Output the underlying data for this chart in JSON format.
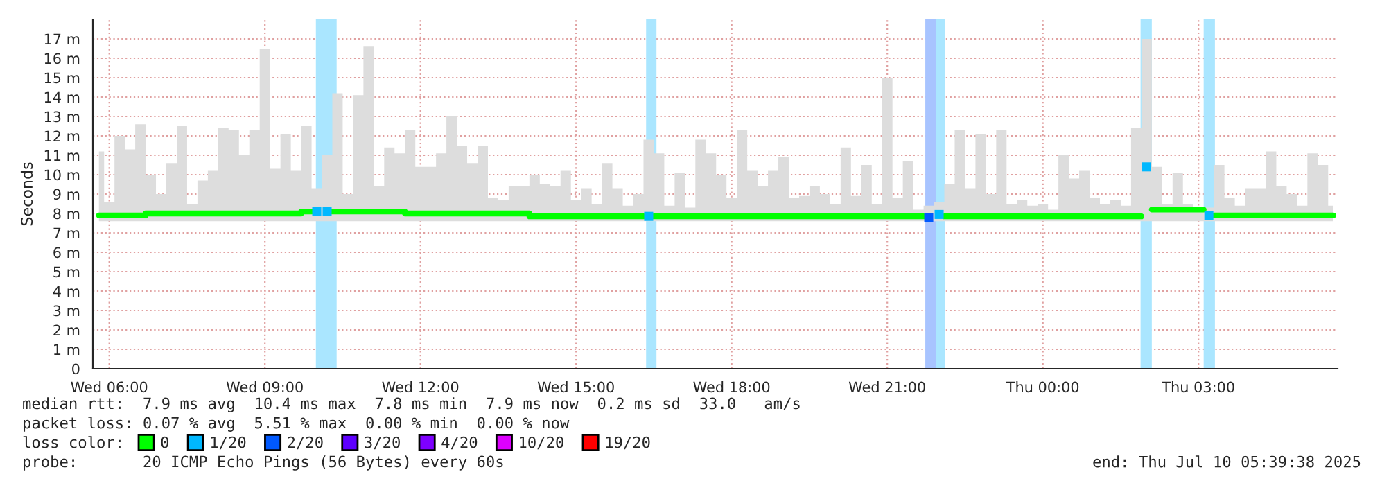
{
  "chart_data": {
    "type": "step",
    "ylabel": "Seconds",
    "xlim": [
      "2025-07-09T05:41",
      "2025-07-10T05:41"
    ],
    "ylim": [
      0,
      18
    ],
    "xticks": [
      {
        "value": "2025-07-09T06:00",
        "label": "Wed 06:00"
      },
      {
        "value": "2025-07-09T09:00",
        "label": "Wed 09:00"
      },
      {
        "value": "2025-07-09T12:00",
        "label": "Wed 12:00"
      },
      {
        "value": "2025-07-09T15:00",
        "label": "Wed 15:00"
      },
      {
        "value": "2025-07-09T18:00",
        "label": "Wed 18:00"
      },
      {
        "value": "2025-07-09T21:00",
        "label": "Wed 21:00"
      },
      {
        "value": "2025-07-10T00:00",
        "label": "Thu 00:00"
      },
      {
        "value": "2025-07-10T03:00",
        "label": "Thu 03:00"
      }
    ],
    "yticks": [
      0,
      {
        "value": 1,
        "label": "1 m"
      },
      {
        "value": 2,
        "label": "2 m"
      },
      {
        "value": 3,
        "label": "3 m"
      },
      {
        "value": 4,
        "label": "4 m"
      },
      {
        "value": 5,
        "label": "5 m"
      },
      {
        "value": 6,
        "label": "6 m"
      },
      {
        "value": 7,
        "label": "7 m"
      },
      {
        "value": 8,
        "label": "8 m"
      },
      {
        "value": 9,
        "label": "9 m"
      },
      {
        "value": 10,
        "label": "10 m"
      },
      {
        "value": 11,
        "label": "11 m"
      },
      {
        "value": 12,
        "label": "12 m"
      },
      {
        "value": 13,
        "label": "13 m"
      },
      {
        "value": 14,
        "label": "14 m"
      },
      {
        "value": 15,
        "label": "15 m"
      },
      {
        "value": 16,
        "label": "16 m"
      },
      {
        "value": 17,
        "label": "17 m"
      }
    ],
    "grid": true,
    "legend": "bottom",
    "legend_title": "loss color:",
    "x": [
      "2025-07-09T05:48",
      "2025-07-09T06:00",
      "2025-07-09T06:12",
      "2025-07-09T06:24",
      "2025-07-09T06:36",
      "2025-07-09T06:48",
      "2025-07-09T07:00",
      "2025-07-09T07:12",
      "2025-07-09T07:24",
      "2025-07-09T07:36",
      "2025-07-09T07:48",
      "2025-07-09T08:00",
      "2025-07-09T08:12",
      "2025-07-09T08:24",
      "2025-07-09T08:36",
      "2025-07-09T08:48",
      "2025-07-09T09:00",
      "2025-07-09T09:12",
      "2025-07-09T09:24",
      "2025-07-09T09:36",
      "2025-07-09T09:48",
      "2025-07-09T10:00",
      "2025-07-09T10:12",
      "2025-07-09T10:24",
      "2025-07-09T10:36",
      "2025-07-09T10:48",
      "2025-07-09T11:00",
      "2025-07-09T11:12",
      "2025-07-09T11:24",
      "2025-07-09T11:36",
      "2025-07-09T11:48",
      "2025-07-09T12:00",
      "2025-07-09T12:12",
      "2025-07-09T12:24",
      "2025-07-09T12:36",
      "2025-07-09T12:48",
      "2025-07-09T13:00",
      "2025-07-09T13:12",
      "2025-07-09T13:24",
      "2025-07-09T13:36",
      "2025-07-09T13:48",
      "2025-07-09T14:00",
      "2025-07-09T14:12",
      "2025-07-09T14:24",
      "2025-07-09T14:36",
      "2025-07-09T14:48",
      "2025-07-09T15:00",
      "2025-07-09T15:12",
      "2025-07-09T15:24",
      "2025-07-09T15:36",
      "2025-07-09T15:48",
      "2025-07-09T16:00",
      "2025-07-09T16:12",
      "2025-07-09T16:24",
      "2025-07-09T16:36",
      "2025-07-09T16:48",
      "2025-07-09T17:00",
      "2025-07-09T17:12",
      "2025-07-09T17:24",
      "2025-07-09T17:36",
      "2025-07-09T17:48",
      "2025-07-09T18:00",
      "2025-07-09T18:12",
      "2025-07-09T18:24",
      "2025-07-09T18:36",
      "2025-07-09T18:48",
      "2025-07-09T19:00",
      "2025-07-09T19:12",
      "2025-07-09T19:24",
      "2025-07-09T19:36",
      "2025-07-09T19:48",
      "2025-07-09T20:00",
      "2025-07-09T20:12",
      "2025-07-09T20:24",
      "2025-07-09T20:36",
      "2025-07-09T20:48",
      "2025-07-09T21:00",
      "2025-07-09T21:12",
      "2025-07-09T21:24",
      "2025-07-09T21:36",
      "2025-07-09T21:48",
      "2025-07-09T22:00",
      "2025-07-09T22:12",
      "2025-07-09T22:24",
      "2025-07-09T22:36",
      "2025-07-09T22:48",
      "2025-07-09T23:00",
      "2025-07-09T23:12",
      "2025-07-09T23:24",
      "2025-07-09T23:36",
      "2025-07-09T23:48",
      "2025-07-10T00:00",
      "2025-07-10T00:12",
      "2025-07-10T00:24",
      "2025-07-10T00:36",
      "2025-07-10T00:48",
      "2025-07-10T01:00",
      "2025-07-10T01:12",
      "2025-07-10T01:24",
      "2025-07-10T01:36",
      "2025-07-10T01:48",
      "2025-07-10T02:00",
      "2025-07-10T02:12",
      "2025-07-10T02:24",
      "2025-07-10T02:36",
      "2025-07-10T02:48",
      "2025-07-10T03:00",
      "2025-07-10T03:12",
      "2025-07-10T03:24",
      "2025-07-10T03:36",
      "2025-07-10T03:48",
      "2025-07-10T04:00",
      "2025-07-10T04:12",
      "2025-07-10T04:24",
      "2025-07-10T04:36",
      "2025-07-10T04:48",
      "2025-07-10T05:00",
      "2025-07-10T05:12",
      "2025-07-10T05:24",
      "2025-07-10T05:36"
    ],
    "series": [
      {
        "name": "0",
        "color": "#00ff00",
        "values": [
          7.9,
          7.9,
          7.9,
          7.9,
          7.9,
          8.0,
          8.0,
          8.0,
          8.0,
          8.0,
          8.0,
          8.0,
          8.0,
          8.0,
          8.0,
          8.0,
          8.0,
          8.0,
          8.0,
          8.0,
          8.1,
          null,
          null,
          8.1,
          8.1,
          8.1,
          8.1,
          8.1,
          8.1,
          8.1,
          8.0,
          8.0,
          8.0,
          8.0,
          8.0,
          8.0,
          8.0,
          8.0,
          8.0,
          8.0,
          8.0,
          8.0,
          7.85,
          7.85,
          7.85,
          7.85,
          7.85,
          7.85,
          7.85,
          7.85,
          7.85,
          7.85,
          7.85,
          null,
          7.85,
          7.85,
          7.85,
          7.85,
          7.85,
          7.85,
          7.85,
          7.85,
          7.85,
          7.85,
          7.85,
          7.85,
          7.85,
          7.85,
          7.85,
          7.85,
          7.85,
          7.85,
          7.85,
          7.85,
          7.85,
          7.85,
          7.85,
          7.85,
          7.85,
          7.85,
          null,
          null,
          7.85,
          7.85,
          7.85,
          7.85,
          7.85,
          7.85,
          7.85,
          7.85,
          7.85,
          7.85,
          7.85,
          7.85,
          7.85,
          7.85,
          7.85,
          7.85,
          7.85,
          7.85,
          7.85,
          null,
          8.2,
          8.2,
          8.2,
          8.2,
          8.2,
          null,
          7.9,
          7.9,
          7.9,
          7.9,
          7.9,
          7.9,
          7.9,
          7.9,
          7.9,
          7.9,
          7.9,
          7.9
        ],
        "lower": [
          7.6,
          7.6,
          7.6,
          7.6,
          7.6,
          7.6,
          7.6,
          7.6,
          7.6,
          7.6,
          7.6,
          7.6,
          7.6,
          7.6,
          7.6,
          7.6,
          7.6,
          7.6,
          7.6,
          7.6,
          7.6,
          7.6,
          7.6,
          7.6,
          7.6,
          7.6,
          7.6,
          7.6,
          7.6,
          7.6,
          7.6,
          7.6,
          7.6,
          7.6,
          7.6,
          7.6,
          7.6,
          7.6,
          7.6,
          7.6,
          7.6,
          7.6,
          7.6,
          7.6,
          7.6,
          7.6,
          7.6,
          7.6,
          7.6,
          7.6,
          7.6,
          7.6,
          7.6,
          7.6,
          7.6,
          7.6,
          7.6,
          7.6,
          7.6,
          7.6,
          7.6,
          7.6,
          7.6,
          7.6,
          7.6,
          7.6,
          7.6,
          7.6,
          7.6,
          7.6,
          7.6,
          7.6,
          7.6,
          7.6,
          7.6,
          7.6,
          7.6,
          7.6,
          7.6,
          7.6,
          7.6,
          7.6,
          7.6,
          7.6,
          7.6,
          7.6,
          7.6,
          7.6,
          7.6,
          7.6,
          7.6,
          7.6,
          7.6,
          7.6,
          7.6,
          7.6,
          7.6,
          7.6,
          7.6,
          7.6,
          7.6,
          7.6,
          7.6,
          7.6,
          7.6,
          7.6,
          7.6,
          7.6,
          7.6,
          7.6,
          7.6,
          7.6,
          7.6,
          7.6,
          7.6,
          7.6,
          7.6,
          7.6,
          7.6,
          7.6
        ],
        "upper": [
          11.2,
          8.6,
          12,
          11.3,
          12.6,
          10,
          9,
          10.6,
          12.5,
          8.5,
          9.7,
          10.2,
          12.4,
          12.3,
          11,
          12.3,
          16.5,
          10.3,
          12.1,
          10.2,
          12.5,
          9.3,
          11,
          14.2,
          9,
          14.1,
          16.6,
          9.4,
          11.4,
          11.1,
          12.3,
          10.4,
          10.4,
          11.1,
          13,
          11.5,
          10.6,
          11.5,
          8.8,
          8.7,
          9.4,
          9.4,
          10,
          9.5,
          9.4,
          10.2,
          8.7,
          9.3,
          8.5,
          10.6,
          9.3,
          8.4,
          9,
          11.8,
          11.1,
          8.4,
          10.1,
          8.3,
          11.8,
          11.1,
          10,
          8.8,
          12.3,
          10.2,
          9.4,
          10.2,
          10.9,
          8.8,
          8.9,
          9.4,
          9,
          8.5,
          11.4,
          8.9,
          10.5,
          8.5,
          15,
          8.8,
          10.7,
          8.2,
          8.4,
          8.6,
          9.5,
          12.3,
          9.3,
          12.1,
          9,
          12.3,
          8.5,
          8.7,
          8.4,
          8.5,
          8.2,
          11,
          9.8,
          10.2,
          8.8,
          8.5,
          8.7,
          8.4,
          12.4,
          17,
          10.4,
          8.5,
          10.1,
          8.5,
          8.2,
          8.3,
          10.5,
          8.8,
          8.4,
          9.3,
          9.3,
          11.2,
          9.4,
          9,
          8.4,
          11.1,
          10.5,
          8.4
        ]
      },
      {
        "name": "1/20",
        "color": "#00b8ff",
        "type": "scatter",
        "marker": "square",
        "x": [
          "2025-07-09T10:00",
          "2025-07-09T10:12",
          "2025-07-09T16:24",
          "2025-07-09T22:00",
          "2025-07-10T02:00",
          "2025-07-10T03:12"
        ],
        "values": [
          8.1,
          8.1,
          7.85,
          7.95,
          10.4,
          7.9
        ]
      },
      {
        "name": "2/20",
        "color": "#0059ff",
        "type": "scatter",
        "marker": "square",
        "x": [
          "2025-07-09T21:48"
        ],
        "values": [
          7.8
        ]
      },
      {
        "name": "3/20",
        "color": "#5e00ff",
        "type": "scatter",
        "marker": "square",
        "values": [
          null,
          null,
          null,
          null,
          null,
          null,
          null,
          null,
          null,
          null,
          null,
          null,
          null,
          null,
          null,
          null,
          null,
          null,
          null,
          null,
          null,
          null,
          null,
          null,
          null,
          null,
          null,
          null,
          null,
          null,
          null,
          null,
          null,
          null,
          null,
          null,
          null,
          null,
          null,
          null,
          null,
          null,
          null,
          null,
          null,
          null,
          null,
          null,
          null,
          null,
          null,
          null,
          null,
          null,
          null,
          null,
          null,
          null,
          null,
          null,
          null,
          null,
          null,
          null,
          null,
          null,
          null,
          null,
          null,
          null,
          null,
          null,
          null,
          null,
          null,
          null,
          null,
          null,
          null,
          null,
          null,
          null,
          null,
          null,
          null,
          null,
          null,
          null,
          null,
          null,
          null,
          null,
          null,
          null,
          null,
          null,
          null,
          null,
          null,
          null,
          null,
          null,
          null,
          null,
          null,
          null,
          null,
          null,
          null,
          null,
          null,
          null,
          null,
          null,
          null,
          null,
          null,
          null,
          null,
          null
        ]
      },
      {
        "name": "4/20",
        "color": "#7e00ff",
        "type": "scatter",
        "marker": "square",
        "values": [
          null,
          null,
          null,
          null,
          null,
          null,
          null,
          null,
          null,
          null,
          null,
          null,
          null,
          null,
          null,
          null,
          null,
          null,
          null,
          null,
          null,
          null,
          null,
          null,
          null,
          null,
          null,
          null,
          null,
          null,
          null,
          null,
          null,
          null,
          null,
          null,
          null,
          null,
          null,
          null,
          null,
          null,
          null,
          null,
          null,
          null,
          null,
          null,
          null,
          null,
          null,
          null,
          null,
          null,
          null,
          null,
          null,
          null,
          null,
          null,
          null,
          null,
          null,
          null,
          null,
          null,
          null,
          null,
          null,
          null,
          null,
          null,
          null,
          null,
          null,
          null,
          null,
          null,
          null,
          null,
          null,
          null,
          null,
          null,
          null,
          null,
          null,
          null,
          null,
          null,
          null,
          null,
          null,
          null,
          null,
          null,
          null,
          null,
          null,
          null,
          null,
          null,
          null,
          null,
          null,
          null,
          null,
          null,
          null,
          null,
          null,
          null,
          null,
          null,
          null,
          null,
          null,
          null,
          null,
          null
        ]
      },
      {
        "name": "10/20",
        "color": "#dd00ff",
        "type": "scatter",
        "marker": "square",
        "values": [
          null,
          null,
          null,
          null,
          null,
          null,
          null,
          null,
          null,
          null,
          null,
          null,
          null,
          null,
          null,
          null,
          null,
          null,
          null,
          null,
          null,
          null,
          null,
          null,
          null,
          null,
          null,
          null,
          null,
          null,
          null,
          null,
          null,
          null,
          null,
          null,
          null,
          null,
          null,
          null,
          null,
          null,
          null,
          null,
          null,
          null,
          null,
          null,
          null,
          null,
          null,
          null,
          null,
          null,
          null,
          null,
          null,
          null,
          null,
          null,
          null,
          null,
          null,
          null,
          null,
          null,
          null,
          null,
          null,
          null,
          null,
          null,
          null,
          null,
          null,
          null,
          null,
          null,
          null,
          null,
          null,
          null,
          null,
          null,
          null,
          null,
          null,
          null,
          null,
          null,
          null,
          null,
          null,
          null,
          null,
          null,
          null,
          null,
          null,
          null,
          null,
          null,
          null,
          null,
          null,
          null,
          null,
          null,
          null,
          null,
          null,
          null,
          null,
          null,
          null,
          null,
          null,
          null,
          null,
          null
        ]
      },
      {
        "name": "19/20",
        "color": "#ff0000",
        "type": "scatter",
        "marker": "square",
        "values": [
          null,
          null,
          null,
          null,
          null,
          null,
          null,
          null,
          null,
          null,
          null,
          null,
          null,
          null,
          null,
          null,
          null,
          null,
          null,
          null,
          null,
          null,
          null,
          null,
          null,
          null,
          null,
          null,
          null,
          null,
          null,
          null,
          null,
          null,
          null,
          null,
          null,
          null,
          null,
          null,
          null,
          null,
          null,
          null,
          null,
          null,
          null,
          null,
          null,
          null,
          null,
          null,
          null,
          null,
          null,
          null,
          null,
          null,
          null,
          null,
          null,
          null,
          null,
          null,
          null,
          null,
          null,
          null,
          null,
          null,
          null,
          null,
          null,
          null,
          null,
          null,
          null,
          null,
          null,
          null,
          null,
          null,
          null,
          null,
          null,
          null,
          null,
          null,
          null,
          null,
          null,
          null,
          null,
          null,
          null,
          null,
          null,
          null,
          null,
          null,
          null,
          null,
          null,
          null,
          null,
          null,
          null,
          null,
          null,
          null,
          null,
          null,
          null,
          null,
          null,
          null,
          null,
          null,
          null,
          null
        ]
      }
    ],
    "bands": [
      {
        "axis": "x",
        "from": "2025-07-09T09:59",
        "to": "2025-07-09T10:23",
        "color": "#aae6ff"
      },
      {
        "axis": "x",
        "from": "2025-07-09T16:21",
        "to": "2025-07-09T16:33",
        "color": "#aae6ff"
      },
      {
        "axis": "x",
        "from": "2025-07-09T21:44",
        "to": "2025-07-09T21:56",
        "color": "#a8c4ff"
      },
      {
        "axis": "x",
        "from": "2025-07-09T21:56",
        "to": "2025-07-09T22:07",
        "color": "#aae6ff"
      },
      {
        "axis": "x",
        "from": "2025-07-10T01:53",
        "to": "2025-07-10T02:06",
        "color": "#aae6ff"
      },
      {
        "axis": "x",
        "from": "2025-07-10T03:06",
        "to": "2025-07-10T03:19",
        "color": "#aae6ff"
      }
    ],
    "annotations": [
      "median rtt:  7.9 ms avg  10.4 ms max  7.8 ms min  7.9 ms now  0.2 ms sd  33.0   am/s",
      "packet loss: 0.07 % avg  5.51 % max  0.00 % min  0.00 % now",
      "probe:       20 ICMP Echo Pings (56 Bytes) every 60s",
      "end: Thu Jul 10 05:39:38 2025"
    ]
  }
}
